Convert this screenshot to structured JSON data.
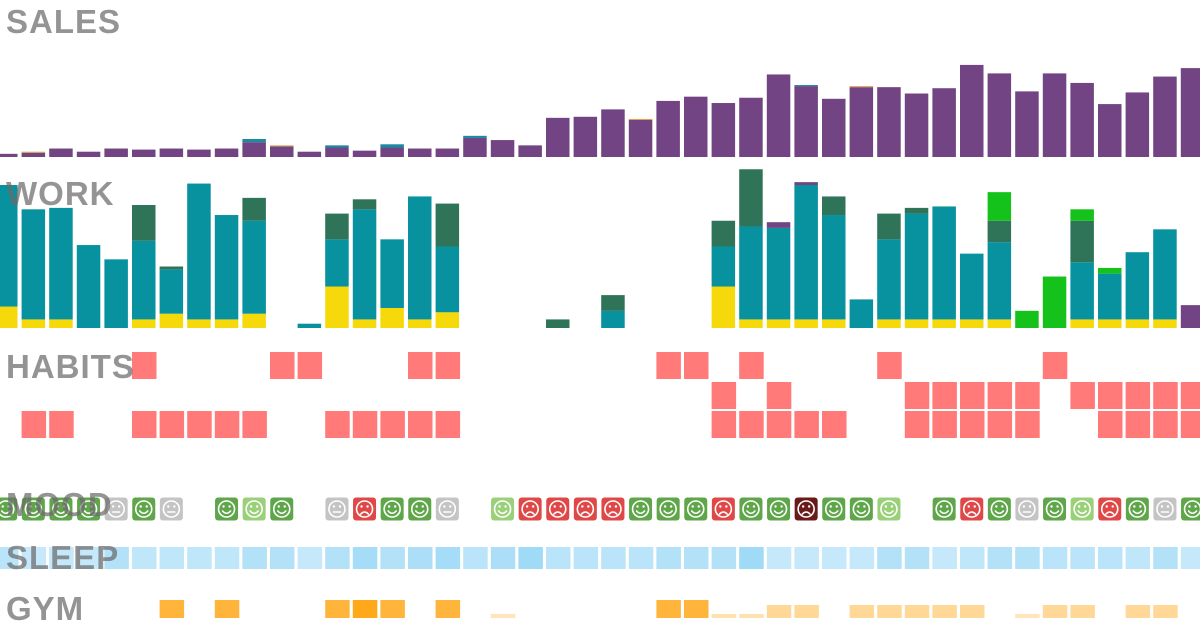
{
  "labels": {
    "sales": "SALES",
    "work": "WORK",
    "habits": "HABITS",
    "mood": "MOOD",
    "sleep": "SLEEP",
    "gym": "GYM"
  },
  "colors": {
    "sales_main": "#734483",
    "sales_accent1": "#1a8aa0",
    "sales_accent2": "#d9a24a",
    "work_yellow": "#f5d90a",
    "work_teal": "#08919f",
    "work_darkgreen": "#2f7458",
    "work_brightgreen": "#15c21c",
    "work_purple": "#734483",
    "habit": "#ff7a78",
    "mood_green": "#5fa64a",
    "mood_red": "#e04848",
    "mood_gray": "#c4c4c4",
    "mood_light": "#9bd07a",
    "mood_dark": "#6b1a1a",
    "sleep_base": "#7fcdf4",
    "gym_base": "#ffa81a"
  },
  "chart_data": {
    "type": "bar",
    "columns": 44,
    "sales": {
      "type": "bar",
      "ylim": [
        0,
        120
      ],
      "main": [
        3,
        4,
        8,
        5,
        8,
        7,
        8,
        7,
        8,
        14,
        10,
        5,
        9,
        6,
        9,
        8,
        8,
        18,
        16,
        11,
        37,
        38,
        45,
        35,
        53,
        57,
        51,
        56,
        78,
        67,
        55,
        66,
        66,
        60,
        65,
        87,
        79,
        62,
        79,
        70,
        50,
        61,
        76,
        84
      ],
      "accent1": [
        0,
        0,
        0,
        0,
        0,
        0,
        0,
        0,
        0,
        3,
        0,
        0,
        2,
        0,
        3,
        0,
        0,
        2,
        0,
        0,
        0,
        0,
        0,
        0,
        0,
        0,
        0,
        0,
        0,
        1,
        0,
        0,
        0,
        0,
        0,
        0,
        0,
        0,
        0,
        0,
        0,
        0,
        0,
        0
      ],
      "accent2": [
        0,
        1,
        0,
        0,
        0,
        0,
        0,
        0,
        0,
        0,
        1,
        0,
        0,
        0,
        0,
        0,
        0,
        0,
        0,
        0,
        0,
        0,
        0,
        1,
        0,
        0,
        0,
        0,
        0,
        0,
        0,
        1,
        0,
        0,
        0,
        0,
        0,
        0,
        0,
        0,
        0,
        0,
        0,
        0
      ],
      "ordered_bar_sequence_note": ""
    },
    "work": {
      "type": "stacked-bar",
      "ylim": [
        0,
        10
      ],
      "yellow": [
        1.5,
        0.6,
        0.6,
        0,
        0,
        0.6,
        1.0,
        0.6,
        0.6,
        1.0,
        0,
        0,
        2.9,
        0.6,
        1.4,
        0.6,
        1.1,
        0,
        0,
        0,
        0,
        0,
        0,
        0,
        0,
        0,
        2.9,
        0.6,
        0.6,
        0.6,
        0.6,
        0,
        0.6,
        0.6,
        0.6,
        0.6,
        0.6,
        0,
        0,
        0.6,
        0.6,
        0.6,
        0.6,
        0
      ],
      "teal": [
        8.5,
        7.7,
        7.8,
        5.8,
        4.8,
        5.5,
        3.1,
        9.5,
        7.3,
        6.5,
        0,
        0.3,
        3.3,
        7.7,
        4.8,
        8.6,
        4.6,
        0,
        0,
        0,
        0,
        0,
        1.2,
        0,
        0,
        0,
        2.8,
        6.5,
        6.4,
        9.4,
        7.3,
        2.0,
        5.6,
        7.4,
        7.9,
        4.6,
        5.4,
        0,
        0,
        4.0,
        3.2,
        4.7,
        6.3,
        0
      ],
      "darkgreen": [
        0,
        0,
        0,
        0,
        0,
        2.5,
        0.2,
        0,
        0,
        1.6,
        0,
        0,
        1.8,
        0.7,
        0,
        0,
        3.0,
        0,
        0,
        0,
        0.6,
        0,
        1.1,
        0,
        0,
        0,
        1.8,
        4.0,
        0,
        0,
        1.3,
        0,
        1.8,
        0.4,
        0,
        0,
        1.5,
        0,
        0,
        2.9,
        0,
        0,
        0,
        0
      ],
      "brightgreen": [
        0,
        0,
        0,
        0,
        0,
        0,
        0,
        0,
        0,
        0,
        0,
        0,
        0,
        0,
        0,
        0,
        0,
        0,
        0,
        0,
        0,
        0,
        0,
        0,
        0,
        0,
        0,
        0,
        0,
        0,
        0,
        0,
        0,
        0,
        0,
        0,
        2.0,
        1.2,
        3.6,
        0.8,
        0.4,
        0,
        0,
        0
      ],
      "purple": [
        0,
        0,
        0,
        0,
        0,
        0,
        0,
        0,
        0,
        0,
        0,
        0,
        0,
        0,
        0,
        0,
        0,
        0,
        0,
        0,
        0,
        0,
        0,
        0,
        0,
        0,
        0,
        0,
        0.4,
        0.2,
        0,
        0,
        0,
        0,
        0,
        0,
        0,
        0,
        0,
        0,
        0,
        0,
        0,
        1.6
      ]
    },
    "habits": {
      "type": "heatmap",
      "rows": [
        [
          0,
          0,
          0,
          0,
          0,
          1,
          0,
          0,
          0,
          0,
          1,
          1,
          0,
          0,
          0,
          1,
          1,
          0,
          0,
          0,
          0,
          0,
          0,
          0,
          1,
          1,
          0,
          1,
          0,
          0,
          0,
          0,
          1,
          0,
          0,
          0,
          0,
          0,
          1,
          0,
          0,
          0,
          0,
          0
        ],
        [
          0,
          0,
          0,
          0,
          0,
          0,
          0,
          0,
          0,
          0,
          0,
          0,
          0,
          0,
          0,
          0,
          0,
          0,
          0,
          0,
          0,
          0,
          0,
          0,
          0,
          0,
          1,
          0,
          1,
          0,
          0,
          0,
          0,
          1,
          1,
          1,
          1,
          1,
          0,
          1,
          1,
          1,
          1,
          1
        ],
        [
          0,
          1,
          1,
          0,
          0,
          1,
          1,
          1,
          1,
          1,
          0,
          0,
          1,
          1,
          1,
          1,
          1,
          0,
          0,
          0,
          0,
          0,
          0,
          0,
          0,
          0,
          1,
          1,
          1,
          1,
          1,
          0,
          0,
          1,
          1,
          1,
          1,
          1,
          0,
          0,
          1,
          1,
          1,
          1
        ]
      ]
    },
    "mood": {
      "type": "heatmap",
      "levels": [
        1,
        1,
        1,
        1,
        2,
        1,
        2,
        0,
        1,
        3,
        1,
        0,
        2,
        4,
        1,
        1,
        2,
        0,
        3,
        4,
        4,
        4,
        4,
        1,
        1,
        1,
        4,
        1,
        1,
        5,
        1,
        1,
        3,
        0,
        1,
        4,
        1,
        2,
        1,
        3,
        4,
        1,
        2,
        1
      ],
      "level_names": [
        "none",
        "happy",
        "neutral",
        "very-happy",
        "sad",
        "worried"
      ]
    },
    "sleep": {
      "type": "heatmap",
      "values": [
        0.55,
        0.45,
        0.45,
        0.45,
        0.6,
        0.5,
        0.5,
        0.5,
        0.5,
        0.6,
        0.6,
        0.45,
        0.6,
        0.7,
        0.6,
        0.65,
        0.7,
        0.55,
        0.65,
        0.75,
        0.55,
        0.55,
        0.55,
        0.55,
        0.6,
        0.6,
        0.6,
        0.75,
        0.45,
        0.45,
        0.45,
        0.45,
        0.6,
        0.6,
        0.45,
        0.5,
        0.6,
        0.6,
        0.55,
        0.55,
        0.55,
        0.5,
        0.6,
        0.45
      ]
    },
    "gym": {
      "type": "heatmap",
      "values": [
        0,
        0,
        0,
        0,
        0,
        0,
        0.85,
        0,
        0.85,
        0,
        0,
        0,
        0.85,
        1.0,
        0.85,
        0,
        0.85,
        0,
        0.3,
        0,
        0,
        0,
        0,
        0,
        0.85,
        0.85,
        0.35,
        0.35,
        0.45,
        0.45,
        0,
        0.45,
        0.45,
        0.45,
        0.45,
        0.45,
        0,
        0.3,
        0.45,
        0.45,
        0,
        0.45,
        0.45,
        0
      ]
    }
  }
}
